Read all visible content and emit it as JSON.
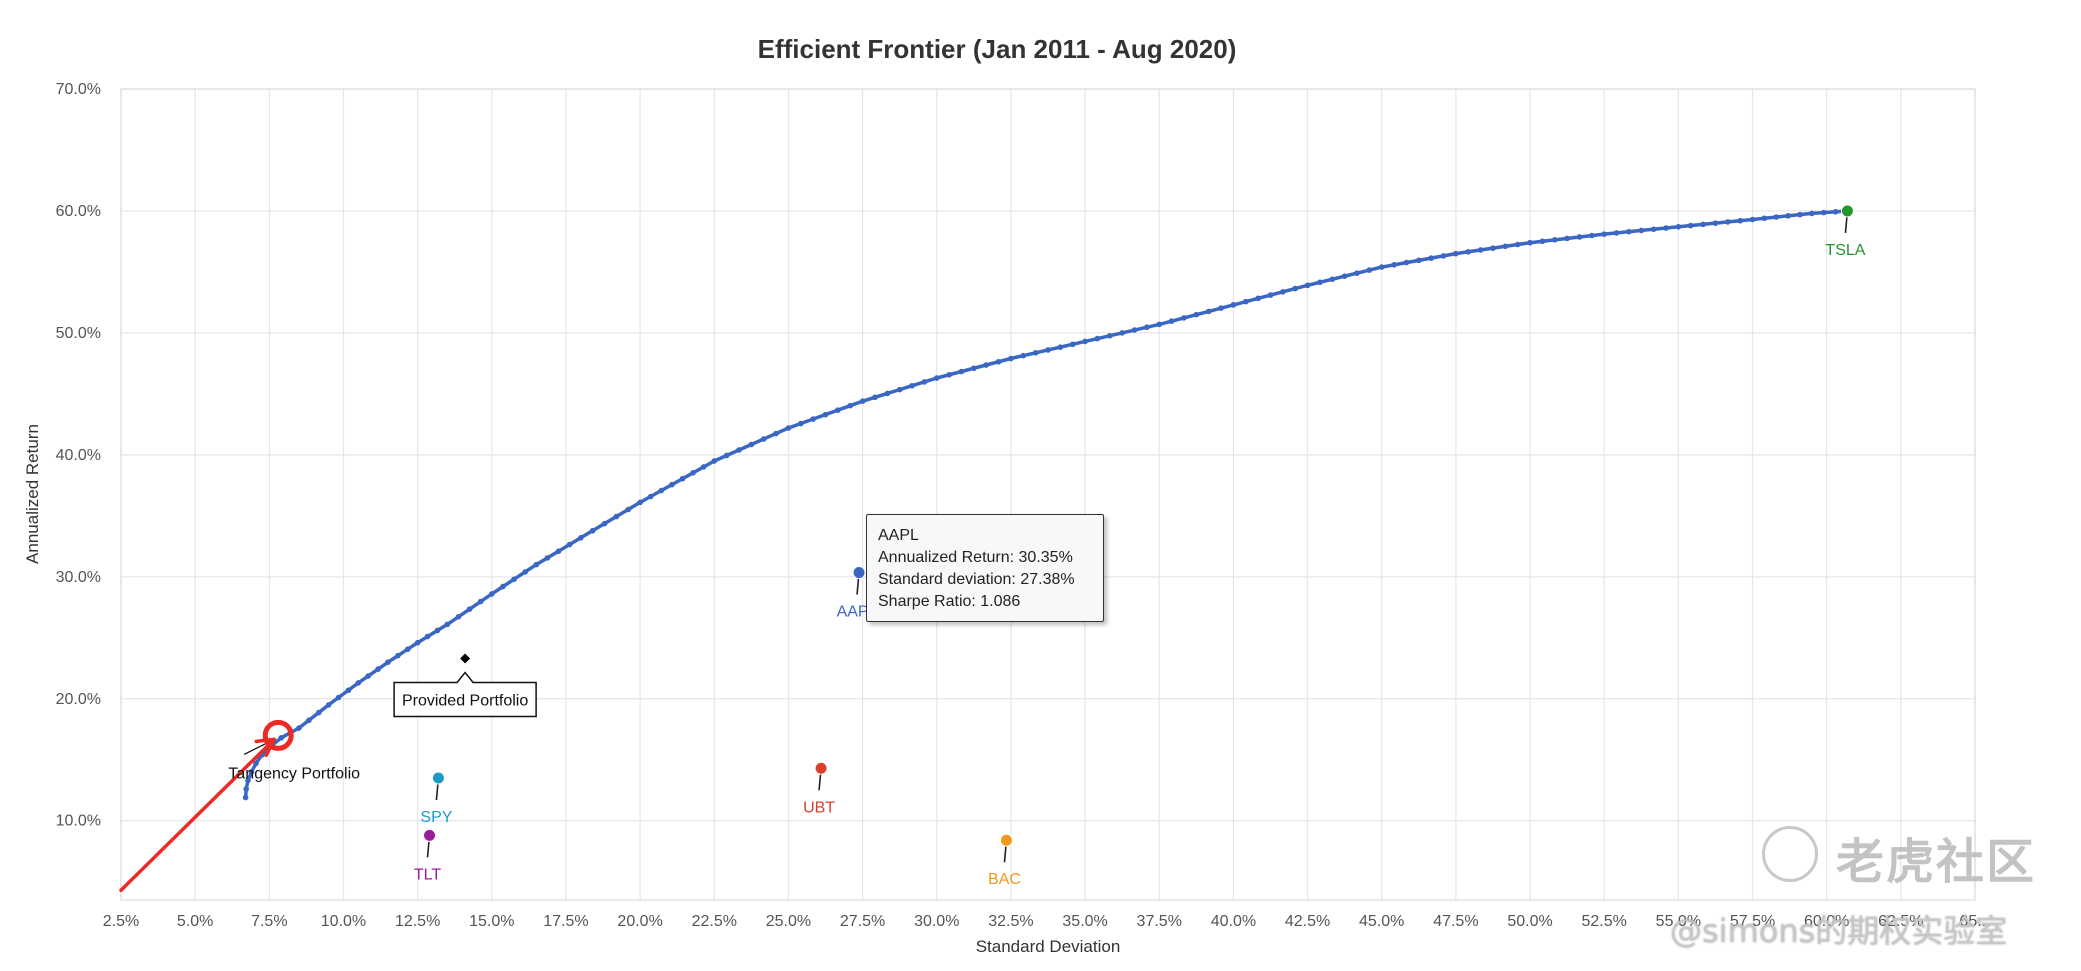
{
  "chart_data": {
    "type": "scatter",
    "title": "Efficient Frontier (Jan 2011 - Aug 2020)",
    "xlabel": "Standard Deviation",
    "ylabel": "Annualized Return",
    "xlim": [
      2.5,
      65.0
    ],
    "ylim": [
      3.5,
      70.0
    ],
    "x_ticks": [
      "2.5%",
      "5.0%",
      "7.5%",
      "10.0%",
      "12.5%",
      "15.0%",
      "17.5%",
      "20.0%",
      "22.5%",
      "25.0%",
      "27.5%",
      "30.0%",
      "32.5%",
      "35.0%",
      "37.5%",
      "40.0%",
      "42.5%",
      "45.0%",
      "47.5%",
      "50.0%",
      "52.5%",
      "55.0%",
      "57.5%",
      "60.0%",
      "62.5%",
      "65..."
    ],
    "y_ticks": [
      "10.0%",
      "20.0%",
      "30.0%",
      "40.0%",
      "50.0%",
      "60.0%",
      "70.0%"
    ],
    "grid": true,
    "frontier_color": "#3a66c4",
    "frontier": [
      [
        6.7,
        11.9
      ],
      [
        6.72,
        12.6
      ],
      [
        6.78,
        13.3
      ],
      [
        6.9,
        14.0
      ],
      [
        7.05,
        14.7
      ],
      [
        7.25,
        15.4
      ],
      [
        7.55,
        16.1
      ],
      [
        7.9,
        16.8
      ],
      [
        8.5,
        17.6
      ],
      [
        9.5,
        19.5
      ],
      [
        10.5,
        21.3
      ],
      [
        11.5,
        23.0
      ],
      [
        12.5,
        24.6
      ],
      [
        13.5,
        26.1
      ],
      [
        15.0,
        28.6
      ],
      [
        16.5,
        31.0
      ],
      [
        18.0,
        33.2
      ],
      [
        20.0,
        36.1
      ],
      [
        22.5,
        39.5
      ],
      [
        25.0,
        42.2
      ],
      [
        27.5,
        44.4
      ],
      [
        30.0,
        46.3
      ],
      [
        32.5,
        47.9
      ],
      [
        35.0,
        49.3
      ],
      [
        37.5,
        50.7
      ],
      [
        40.0,
        52.3
      ],
      [
        42.5,
        53.9
      ],
      [
        45.0,
        55.4
      ],
      [
        47.5,
        56.5
      ],
      [
        50.0,
        57.4
      ],
      [
        52.5,
        58.1
      ],
      [
        55.0,
        58.7
      ],
      [
        57.5,
        59.3
      ],
      [
        59.5,
        59.8
      ],
      [
        60.7,
        60.0
      ]
    ],
    "assets": [
      {
        "name": "TSLA",
        "x": 60.7,
        "y": 60.0,
        "color": "#22962a"
      },
      {
        "name": "AAPL",
        "x": 27.38,
        "y": 30.35,
        "color": "#3a66c4"
      },
      {
        "name": "UBT",
        "x": 26.1,
        "y": 14.3,
        "color": "#d9412a"
      },
      {
        "name": "BAC",
        "x": 32.35,
        "y": 8.4,
        "color": "#ef9a1a"
      },
      {
        "name": "SPY",
        "x": 13.2,
        "y": 13.5,
        "color": "#1a9bc9"
      },
      {
        "name": "TLT",
        "x": 12.9,
        "y": 8.8,
        "color": "#9a1e9a"
      }
    ],
    "provided_portfolio": {
      "label": "Provided Portfolio",
      "x": 14.1,
      "y": 23.3
    },
    "tangency_portfolio": {
      "label": "Tangency Portfolio",
      "x": 7.8,
      "y": 17.0
    },
    "highlight_color": "#ee2a24"
  },
  "tooltip": {
    "name": "AAPL",
    "line1": "Annualized Return: 30.35%",
    "line2": "Standard deviation: 27.38%",
    "line3": "Sharpe Ratio: 1.086"
  },
  "watermark": {
    "brand": "老虎社区",
    "handle": "@simons的期权实验室"
  }
}
